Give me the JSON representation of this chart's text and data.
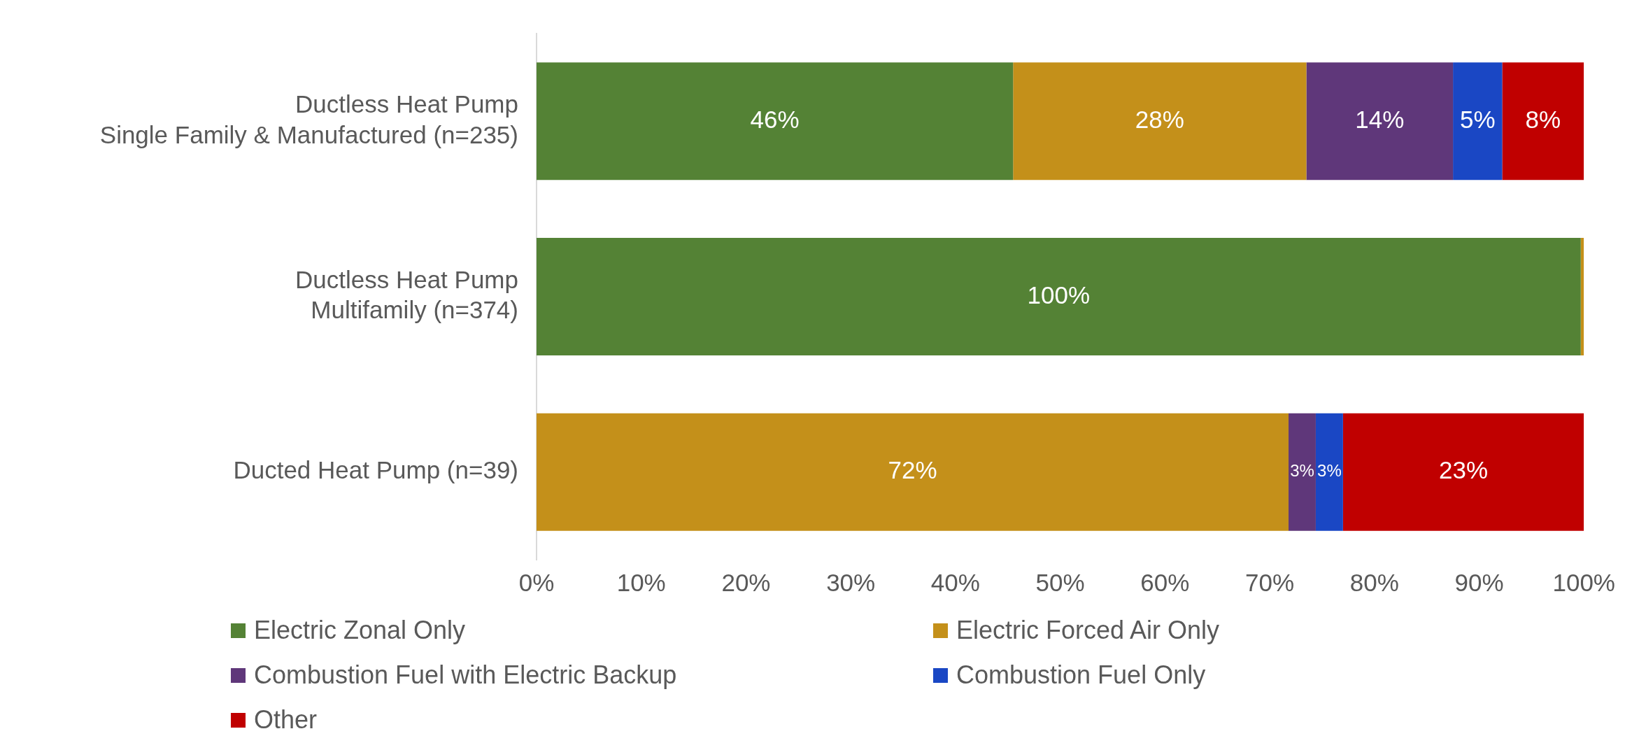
{
  "chart_data": {
    "type": "bar",
    "orientation": "horizontal",
    "stacked": true,
    "categories": [
      "Ductless Heat Pump\nSingle Family & Manufactured (n=235)",
      "Ductless Heat Pump\nMultifamily (n=374)",
      "Ducted Heat Pump (n=39)"
    ],
    "series": [
      {
        "name": "Electric Zonal Only",
        "color": "#548235",
        "values": [
          45.5,
          99.7,
          null
        ],
        "value_labels": [
          "46%",
          "100%",
          null
        ]
      },
      {
        "name": "Electric Forced Air Only",
        "color": "#c4901a",
        "values": [
          28,
          0.3,
          71.8
        ],
        "value_labels": [
          "28%",
          null,
          "72%"
        ]
      },
      {
        "name": "Combustion Fuel with Electric Backup",
        "color": "#5f377a",
        "values": [
          14,
          null,
          2.6
        ],
        "value_labels": [
          "14%",
          null,
          "3%"
        ]
      },
      {
        "name": "Combustion Fuel Only",
        "color": "#1a47c4",
        "values": [
          4.7,
          null,
          2.6
        ],
        "value_labels": [
          "5%",
          null,
          "3%"
        ]
      },
      {
        "name": "Other",
        "color": "#c00000",
        "values": [
          7.8,
          null,
          23
        ],
        "value_labels": [
          "8%",
          null,
          "23%"
        ]
      }
    ],
    "xlim": [
      0,
      100
    ],
    "xticks": [
      {
        "value": 0,
        "label": "0%"
      },
      {
        "value": 10,
        "label": "10%"
      },
      {
        "value": 20,
        "label": "20%"
      },
      {
        "value": 30,
        "label": "30%"
      },
      {
        "value": 40,
        "label": "40%"
      },
      {
        "value": 50,
        "label": "50%"
      },
      {
        "value": 60,
        "label": "60%"
      },
      {
        "value": 70,
        "label": "70%"
      },
      {
        "value": 80,
        "label": "80%"
      },
      {
        "value": 90,
        "label": "90%"
      },
      {
        "value": 100,
        "label": "100%"
      }
    ],
    "grid": false,
    "legend": "bottom"
  }
}
